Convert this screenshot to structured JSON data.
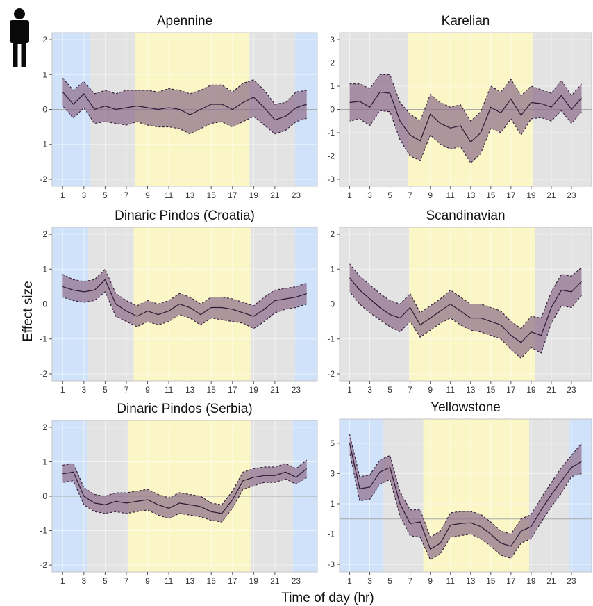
{
  "figure": {
    "xlabel": "Time of day (hr)",
    "ylabel": "Effect size",
    "icon": "person-icon"
  },
  "colors": {
    "night": "#cfe2fa",
    "twilight": "#e3e3e3",
    "day": "#fbf6c6",
    "band": "#8f6f8c",
    "line": "#2b1a33",
    "zero": "#aaaaaa"
  },
  "chart_data": [
    {
      "type": "line",
      "title": "Apennine",
      "xlim": [
        0,
        25
      ],
      "ylim": [
        -2.2,
        2.2
      ],
      "yticks": [
        -2,
        -1,
        0,
        1,
        2
      ],
      "xticks": [
        1,
        3,
        5,
        7,
        9,
        11,
        13,
        15,
        17,
        19,
        21,
        23
      ],
      "zero_line": 0,
      "periods": [
        {
          "type": "night",
          "from": 0,
          "to": 3.6
        },
        {
          "type": "twilight",
          "from": 3.6,
          "to": 7.8
        },
        {
          "type": "day",
          "from": 7.8,
          "to": 18.6
        },
        {
          "type": "twilight",
          "from": 18.6,
          "to": 22.9
        },
        {
          "type": "night",
          "from": 22.9,
          "to": 25
        }
      ],
      "x": [
        1,
        2,
        3,
        4,
        5,
        6,
        7,
        8,
        9,
        10,
        11,
        12,
        13,
        14,
        15,
        16,
        17,
        18,
        19,
        20,
        21,
        22,
        23,
        24
      ],
      "estimate": [
        0.5,
        0.15,
        0.45,
        0.0,
        0.1,
        0.0,
        0.05,
        0.1,
        0.05,
        0.0,
        0.05,
        0.0,
        -0.15,
        0.0,
        0.15,
        0.15,
        0.0,
        0.2,
        0.35,
        0.05,
        -0.3,
        -0.2,
        0.05,
        0.15
      ],
      "lower": [
        0.1,
        -0.25,
        0.05,
        -0.4,
        -0.35,
        -0.4,
        -0.45,
        -0.35,
        -0.45,
        -0.5,
        -0.5,
        -0.55,
        -0.7,
        -0.55,
        -0.4,
        -0.35,
        -0.5,
        -0.35,
        -0.2,
        -0.45,
        -0.7,
        -0.6,
        -0.35,
        -0.25
      ],
      "upper": [
        0.9,
        0.55,
        0.8,
        0.45,
        0.55,
        0.45,
        0.55,
        0.55,
        0.55,
        0.5,
        0.6,
        0.55,
        0.45,
        0.55,
        0.7,
        0.7,
        0.5,
        0.75,
        0.85,
        0.55,
        0.15,
        0.2,
        0.5,
        0.55
      ]
    },
    {
      "type": "line",
      "title": "Karelian",
      "xlim": [
        0,
        25
      ],
      "ylim": [
        -3.3,
        3.3
      ],
      "yticks": [
        -3,
        -2,
        -1,
        0,
        1,
        2,
        3
      ],
      "xticks": [
        1,
        3,
        5,
        7,
        9,
        11,
        13,
        15,
        17,
        19,
        21,
        23
      ],
      "zero_line": 0,
      "periods": [
        {
          "type": "twilight",
          "from": 0,
          "to": 6.8
        },
        {
          "type": "day",
          "from": 6.8,
          "to": 19.2
        },
        {
          "type": "twilight",
          "from": 19.2,
          "to": 25
        }
      ],
      "x": [
        1,
        2,
        3,
        4,
        5,
        6,
        7,
        8,
        9,
        10,
        11,
        12,
        13,
        14,
        15,
        16,
        17,
        18,
        19,
        20,
        21,
        22,
        23,
        24
      ],
      "estimate": [
        0.3,
        0.35,
        0.1,
        0.75,
        0.7,
        -0.5,
        -1.1,
        -1.35,
        -0.2,
        -0.6,
        -0.8,
        -0.7,
        -1.4,
        -1.0,
        0.1,
        -0.15,
        0.45,
        -0.25,
        0.3,
        0.25,
        0.1,
        0.6,
        0.0,
        0.5
      ],
      "lower": [
        -0.5,
        -0.4,
        -0.7,
        -0.05,
        -0.1,
        -1.3,
        -2.0,
        -2.2,
        -1.1,
        -1.5,
        -1.7,
        -1.6,
        -2.3,
        -1.9,
        -0.8,
        -1.0,
        -0.4,
        -1.1,
        -0.4,
        -0.35,
        -0.5,
        -0.05,
        -0.6,
        -0.1
      ],
      "upper": [
        1.1,
        1.1,
        0.9,
        1.5,
        1.5,
        0.3,
        -0.2,
        -0.5,
        0.65,
        0.3,
        0.1,
        0.2,
        -0.5,
        -0.1,
        1.0,
        0.75,
        1.3,
        0.6,
        1.0,
        0.85,
        0.7,
        1.25,
        0.6,
        1.1
      ]
    },
    {
      "type": "line",
      "title": "Dinaric Pindos (Croatia)",
      "xlim": [
        0,
        25
      ],
      "ylim": [
        -2.2,
        2.2
      ],
      "yticks": [
        -2,
        -1,
        0,
        1,
        2
      ],
      "xticks": [
        1,
        3,
        5,
        7,
        9,
        11,
        13,
        15,
        17,
        19,
        21,
        23
      ],
      "zero_line": 0,
      "periods": [
        {
          "type": "night",
          "from": 0,
          "to": 3.4
        },
        {
          "type": "twilight",
          "from": 3.4,
          "to": 7.7
        },
        {
          "type": "day",
          "from": 7.7,
          "to": 18.7
        },
        {
          "type": "twilight",
          "from": 18.7,
          "to": 22.9
        },
        {
          "type": "night",
          "from": 22.9,
          "to": 25
        }
      ],
      "x": [
        1,
        2,
        3,
        4,
        5,
        6,
        7,
        8,
        9,
        10,
        11,
        12,
        13,
        14,
        15,
        16,
        17,
        18,
        19,
        20,
        21,
        22,
        23,
        24
      ],
      "estimate": [
        0.5,
        0.4,
        0.35,
        0.4,
        0.7,
        0.0,
        -0.2,
        -0.35,
        -0.2,
        -0.3,
        -0.2,
        0.0,
        -0.1,
        -0.3,
        -0.1,
        -0.1,
        -0.15,
        -0.25,
        -0.35,
        -0.15,
        0.1,
        0.15,
        0.2,
        0.3
      ],
      "lower": [
        0.2,
        0.1,
        0.05,
        0.1,
        0.35,
        -0.35,
        -0.5,
        -0.65,
        -0.5,
        -0.6,
        -0.5,
        -0.3,
        -0.4,
        -0.6,
        -0.4,
        -0.45,
        -0.5,
        -0.55,
        -0.7,
        -0.5,
        -0.25,
        -0.15,
        -0.1,
        0.0
      ],
      "upper": [
        0.85,
        0.7,
        0.65,
        0.7,
        1.0,
        0.3,
        0.1,
        -0.05,
        0.1,
        0.0,
        0.1,
        0.3,
        0.2,
        0.0,
        0.2,
        0.2,
        0.15,
        0.05,
        -0.05,
        0.2,
        0.4,
        0.45,
        0.5,
        0.6
      ]
    },
    {
      "type": "line",
      "title": "Scandinavian",
      "xlim": [
        0,
        25
      ],
      "ylim": [
        -2.2,
        2.2
      ],
      "yticks": [
        -2,
        -1,
        0,
        1,
        2
      ],
      "xticks": [
        1,
        3,
        5,
        7,
        9,
        11,
        13,
        15,
        17,
        19,
        21,
        23
      ],
      "zero_line": 0,
      "periods": [
        {
          "type": "twilight",
          "from": 0,
          "to": 6.9
        },
        {
          "type": "day",
          "from": 6.9,
          "to": 19.4
        },
        {
          "type": "twilight",
          "from": 19.4,
          "to": 25
        }
      ],
      "x": [
        1,
        2,
        3,
        4,
        5,
        6,
        7,
        8,
        9,
        10,
        11,
        12,
        13,
        14,
        15,
        16,
        17,
        18,
        19,
        20,
        21,
        22,
        23,
        24
      ],
      "estimate": [
        0.75,
        0.4,
        0.15,
        -0.1,
        -0.3,
        -0.4,
        -0.1,
        -0.6,
        -0.4,
        -0.2,
        0.0,
        -0.2,
        -0.4,
        -0.4,
        -0.5,
        -0.6,
        -0.9,
        -1.1,
        -0.8,
        -0.9,
        -0.1,
        0.4,
        0.35,
        0.65
      ],
      "lower": [
        0.35,
        0.0,
        -0.25,
        -0.45,
        -0.65,
        -0.8,
        -0.5,
        -0.95,
        -0.75,
        -0.55,
        -0.4,
        -0.6,
        -0.75,
        -0.8,
        -0.9,
        -1.0,
        -1.3,
        -1.55,
        -1.25,
        -1.4,
        -0.55,
        -0.05,
        -0.1,
        0.25
      ],
      "upper": [
        1.15,
        0.8,
        0.55,
        0.3,
        0.1,
        0.0,
        0.3,
        -0.25,
        -0.05,
        0.15,
        0.4,
        0.2,
        0.0,
        0.0,
        -0.1,
        -0.2,
        -0.5,
        -0.7,
        -0.35,
        -0.4,
        0.35,
        0.85,
        0.8,
        1.05
      ]
    },
    {
      "type": "line",
      "title": "Dinaric Pindos (Serbia)",
      "xlim": [
        0,
        25
      ],
      "ylim": [
        -2.2,
        2.2
      ],
      "yticks": [
        -2,
        -1,
        0,
        1,
        2
      ],
      "xticks": [
        1,
        3,
        5,
        7,
        9,
        11,
        13,
        15,
        17,
        19,
        21,
        23
      ],
      "zero_line": 0,
      "periods": [
        {
          "type": "night",
          "from": 0,
          "to": 3.3
        },
        {
          "type": "twilight",
          "from": 3.3,
          "to": 7.2
        },
        {
          "type": "day",
          "from": 7.2,
          "to": 18.7
        },
        {
          "type": "twilight",
          "from": 18.7,
          "to": 22.7
        },
        {
          "type": "night",
          "from": 22.7,
          "to": 25
        }
      ],
      "x": [
        1,
        2,
        3,
        4,
        5,
        6,
        7,
        8,
        9,
        10,
        11,
        12,
        13,
        14,
        15,
        16,
        17,
        18,
        19,
        20,
        21,
        22,
        23,
        24
      ],
      "estimate": [
        0.65,
        0.7,
        0.0,
        -0.2,
        -0.25,
        -0.15,
        -0.2,
        -0.15,
        -0.1,
        -0.25,
        -0.35,
        -0.2,
        -0.25,
        -0.3,
        -0.45,
        -0.5,
        -0.1,
        0.45,
        0.55,
        0.6,
        0.6,
        0.7,
        0.55,
        0.8
      ],
      "lower": [
        0.4,
        0.45,
        -0.25,
        -0.45,
        -0.5,
        -0.45,
        -0.5,
        -0.45,
        -0.4,
        -0.55,
        -0.65,
        -0.5,
        -0.55,
        -0.6,
        -0.7,
        -0.75,
        -0.35,
        0.2,
        0.3,
        0.4,
        0.4,
        0.5,
        0.35,
        0.55
      ],
      "upper": [
        0.9,
        0.95,
        0.25,
        0.05,
        0.0,
        0.1,
        0.1,
        0.15,
        0.2,
        0.05,
        -0.05,
        0.1,
        0.05,
        0.0,
        -0.2,
        -0.25,
        0.15,
        0.7,
        0.8,
        0.85,
        0.85,
        0.95,
        0.8,
        1.05
      ]
    },
    {
      "type": "line",
      "title": "Yellowstone",
      "xlim": [
        0,
        25
      ],
      "ylim": [
        -3.5,
        6.6
      ],
      "yticks": [
        -3,
        -1,
        1,
        3,
        5
      ],
      "xticks": [
        1,
        3,
        5,
        7,
        9,
        11,
        13,
        15,
        17,
        19,
        21,
        23
      ],
      "zero_line": 0,
      "periods": [
        {
          "type": "night",
          "from": 0,
          "to": 4.3
        },
        {
          "type": "twilight",
          "from": 4.3,
          "to": 8.3
        },
        {
          "type": "day",
          "from": 8.3,
          "to": 18.8
        },
        {
          "type": "twilight",
          "from": 18.8,
          "to": 22.8
        },
        {
          "type": "night",
          "from": 22.8,
          "to": 25
        }
      ],
      "x": [
        1,
        2,
        3,
        4,
        5,
        6,
        7,
        8,
        9,
        10,
        11,
        12,
        13,
        14,
        15,
        16,
        17,
        18,
        19,
        20,
        21,
        22,
        23,
        24
      ],
      "estimate": [
        5.0,
        2.0,
        2.1,
        3.1,
        3.4,
        1.0,
        -0.3,
        -0.2,
        -2.0,
        -1.6,
        -0.4,
        -0.3,
        -0.25,
        -0.5,
        -1.0,
        -1.6,
        -1.8,
        -0.8,
        -0.5,
        0.6,
        1.6,
        2.5,
        3.4,
        3.8
      ],
      "lower": [
        4.4,
        1.2,
        1.3,
        2.3,
        2.6,
        0.2,
        -1.1,
        -1.2,
        -2.7,
        -2.3,
        -1.2,
        -1.1,
        -1.0,
        -1.3,
        -1.8,
        -2.4,
        -2.6,
        -1.6,
        -1.3,
        -0.2,
        0.8,
        1.7,
        2.8,
        3.0
      ],
      "upper": [
        5.6,
        2.8,
        2.9,
        3.9,
        4.2,
        1.8,
        0.6,
        0.6,
        -1.2,
        -0.8,
        0.4,
        0.5,
        0.5,
        0.3,
        -0.2,
        -0.8,
        -1.0,
        0.0,
        0.3,
        1.4,
        2.4,
        3.4,
        4.2,
        5.0
      ]
    }
  ]
}
